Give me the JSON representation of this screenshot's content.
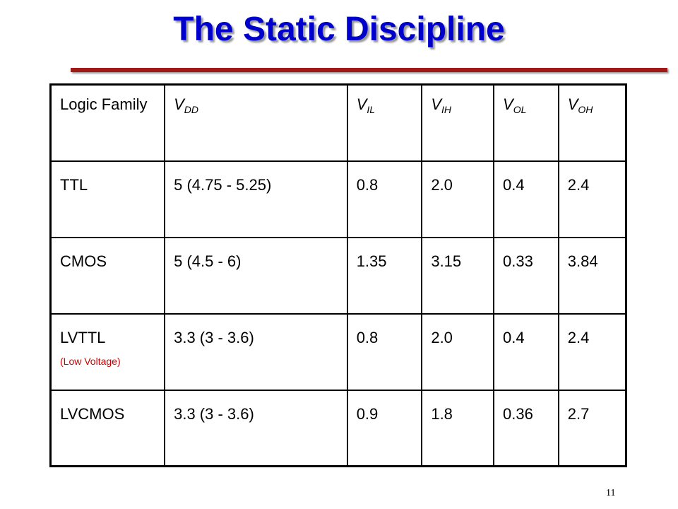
{
  "title": "The Static Discipline",
  "table": {
    "header": [
      {
        "main": "Logic Family"
      },
      {
        "main": "V",
        "sub": "DD"
      },
      {
        "main": "V",
        "sub": "IL"
      },
      {
        "main": "V",
        "sub": "IH"
      },
      {
        "main": "V",
        "sub": "OL"
      },
      {
        "main": "V",
        "sub": "OH"
      }
    ],
    "rows": [
      [
        {
          "main": "TTL"
        },
        "5 (4.75 - 5.25)",
        "0.8",
        "2.0",
        "0.4",
        "2.4"
      ],
      [
        {
          "main": "CMOS"
        },
        "5 (4.5 - 6)",
        "1.35",
        "3.15",
        "0.33",
        "3.84"
      ],
      [
        {
          "main": "LVTTL",
          "note": "(Low Voltage)"
        },
        "3.3 (3 - 3.6)",
        "0.8",
        "2.0",
        "0.4",
        "2.4"
      ],
      [
        {
          "main": "LVCMOS"
        },
        "3.3 (3 - 3.6)",
        "0.9",
        "1.8",
        "0.36",
        "2.7"
      ]
    ]
  },
  "page_number": "11"
}
